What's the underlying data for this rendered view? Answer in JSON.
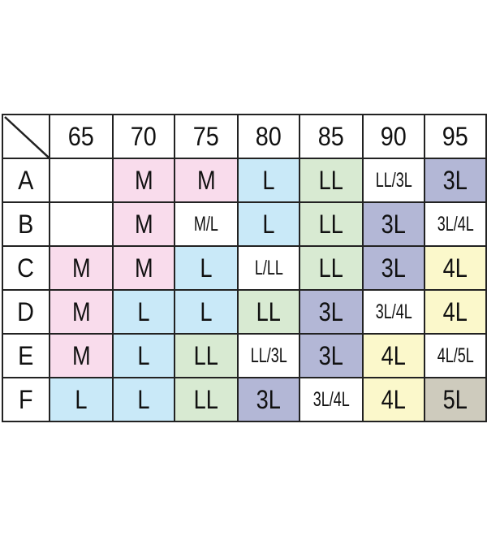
{
  "columns": [
    "65",
    "70",
    "75",
    "80",
    "85",
    "90",
    "95"
  ],
  "rows": [
    {
      "label": "A",
      "cells": [
        "",
        "M",
        "M",
        "L",
        "LL",
        "LL/3L",
        "3L"
      ]
    },
    {
      "label": "B",
      "cells": [
        "",
        "M",
        "M/L",
        "L",
        "LL",
        "3L",
        "3L/4L"
      ]
    },
    {
      "label": "C",
      "cells": [
        "M",
        "M",
        "L",
        "L/LL",
        "LL",
        "3L",
        "4L"
      ]
    },
    {
      "label": "D",
      "cells": [
        "M",
        "L",
        "L",
        "LL",
        "3L",
        "3L/4L",
        "4L"
      ]
    },
    {
      "label": "E",
      "cells": [
        "M",
        "L",
        "LL",
        "LL/3L",
        "3L",
        "4L",
        "4L/5L"
      ]
    },
    {
      "label": "F",
      "cells": [
        "L",
        "L",
        "LL",
        "3L",
        "3L/4L",
        "4L",
        "5L"
      ]
    }
  ],
  "colors": {
    "M": "#f9dcec",
    "L": "#c9e9f8",
    "LL": "#d8ead2",
    "3L": "#b3b7d6",
    "4L": "#fbf8cb",
    "5L": "#cecbbd",
    "mixed": "#ffffff"
  }
}
